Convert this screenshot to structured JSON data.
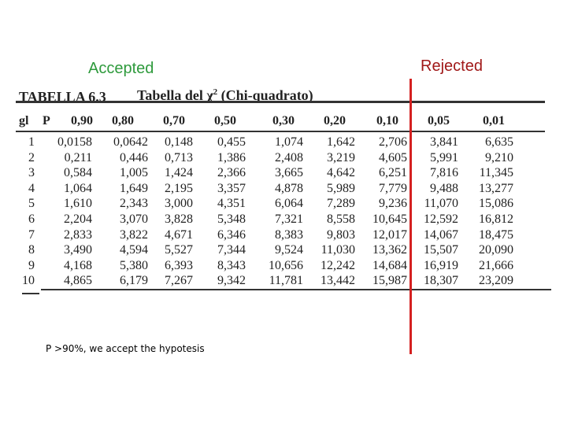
{
  "labels": {
    "accepted": "Accepted",
    "rejected": "Rejected"
  },
  "table": {
    "title_label": "TABELLA 6.3",
    "title_text": "Tabella del χ",
    "title_sup": "2",
    "title_paren": "(Chi-quadrato)",
    "header": {
      "gl": "gl",
      "p": "P",
      "columns": [
        "0,90",
        "0,80",
        "0,70",
        "0,50",
        "0,30",
        "0,20",
        "0,10",
        "0,05",
        "0,01"
      ]
    },
    "rows": [
      {
        "gl": "1",
        "values": [
          "0,0158",
          "0,0642",
          "0,148",
          "0,455",
          "1,074",
          "1,642",
          "2,706",
          "3,841",
          "6,635"
        ]
      },
      {
        "gl": "2",
        "values": [
          "0,211",
          "0,446",
          "0,713",
          "1,386",
          "2,408",
          "3,219",
          "4,605",
          "5,991",
          "9,210"
        ]
      },
      {
        "gl": "3",
        "values": [
          "0,584",
          "1,005",
          "1,424",
          "2,366",
          "3,665",
          "4,642",
          "6,251",
          "7,816",
          "11,345"
        ]
      },
      {
        "gl": "4",
        "values": [
          "1,064",
          "1,649",
          "2,195",
          "3,357",
          "4,878",
          "5,989",
          "7,779",
          "9,488",
          "13,277"
        ]
      },
      {
        "gl": "5",
        "values": [
          "1,610",
          "2,343",
          "3,000",
          "4,351",
          "6,064",
          "7,289",
          "9,236",
          "11,070",
          "15,086"
        ]
      },
      {
        "gl": "6",
        "values": [
          "2,204",
          "3,070",
          "3,828",
          "5,348",
          "7,321",
          "8,558",
          "10,645",
          "12,592",
          "16,812"
        ]
      },
      {
        "gl": "7",
        "values": [
          "2,833",
          "3,822",
          "4,671",
          "6,346",
          "8,383",
          "9,803",
          "12,017",
          "14,067",
          "18,475"
        ]
      },
      {
        "gl": "8",
        "values": [
          "3,490",
          "4,594",
          "5,527",
          "7,344",
          "9,524",
          "11,030",
          "13,362",
          "15,507",
          "20,090"
        ]
      },
      {
        "gl": "9",
        "values": [
          "4,168",
          "5,380",
          "6,393",
          "8,343",
          "10,656",
          "12,242",
          "14,684",
          "16,919",
          "21,666"
        ]
      },
      {
        "gl": "10",
        "values": [
          "4,865",
          "6,179",
          "7,267",
          "9,342",
          "11,781",
          "13,442",
          "15,987",
          "18,307",
          "23,209"
        ]
      }
    ]
  },
  "footnote": "P  >90%, we accept the hypotesis"
}
